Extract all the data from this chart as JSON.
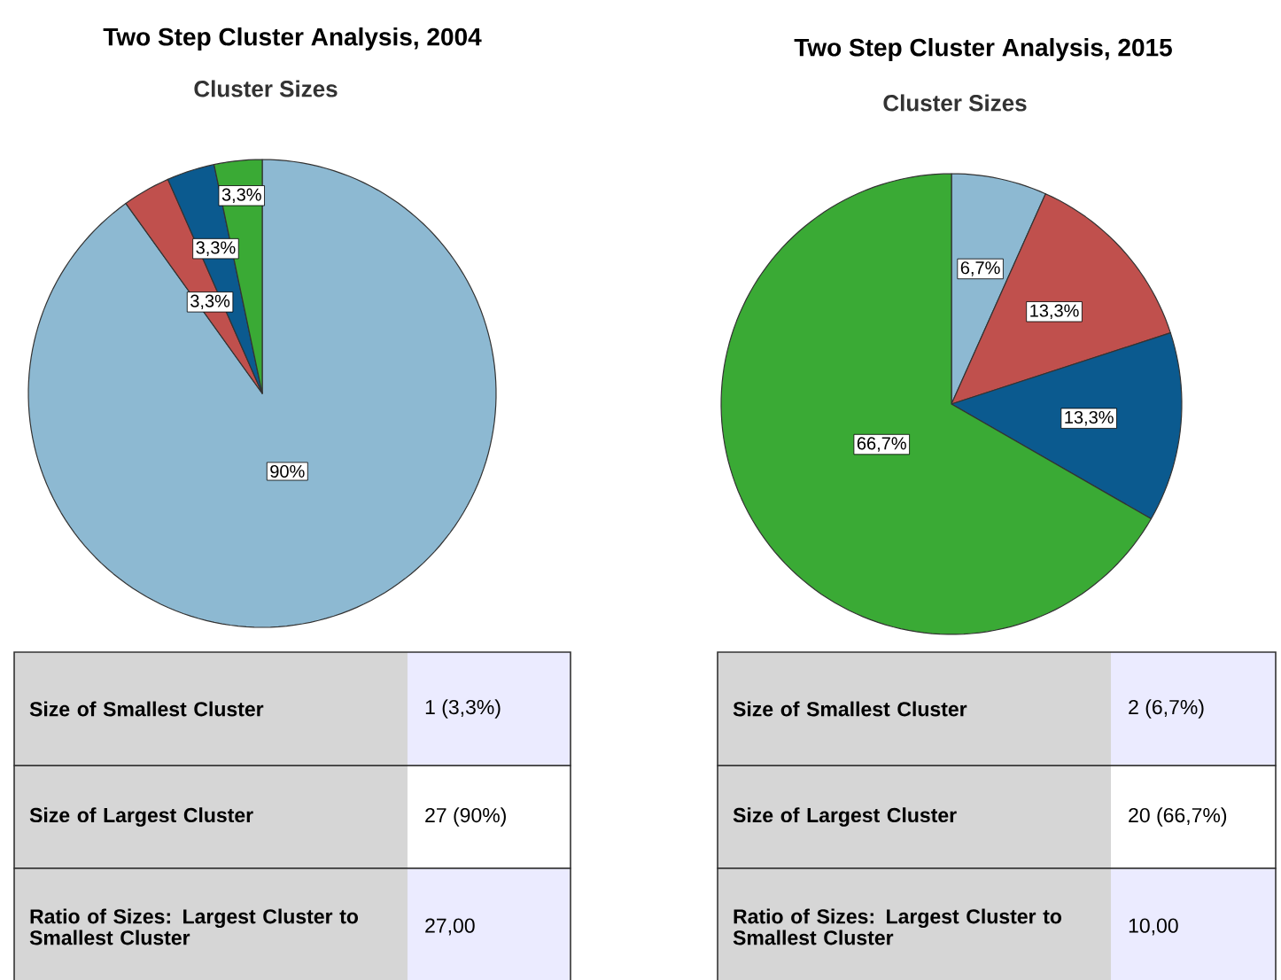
{
  "chart_data": [
    {
      "type": "pie",
      "title": "Two Step Cluster Analysis, 2004",
      "subtitle": "Cluster Sizes",
      "categories": [
        null,
        null,
        null,
        null
      ],
      "values": [
        90,
        3.3,
        3.3,
        3.3
      ],
      "colors": [
        "#8db9d2",
        "#c0504d",
        "#0b5a8f",
        "#3aaa35"
      ],
      "value_labels": [
        "90%",
        "3,3%",
        "3,3%",
        "3,3%"
      ],
      "annotations": [
        "Size of Smallest Cluster",
        "1 (3,3%)",
        "Size of Largest Cluster",
        "27 (90%)",
        "Ratio of Sizes: Largest Cluster to Smallest Cluster",
        "27,00"
      ]
    },
    {
      "type": "pie",
      "title": "Two Step Cluster Analysis, 2015",
      "subtitle": "Cluster Sizes",
      "categories": [
        null,
        null,
        null,
        null
      ],
      "values": [
        6.7,
        13.3,
        13.3,
        66.7
      ],
      "colors": [
        "#8db9d2",
        "#c0504d",
        "#0b5a8f",
        "#3aaa35"
      ],
      "value_labels": [
        "6,7%",
        "13,3%",
        "13,3%",
        "66,7%"
      ],
      "annotations": [
        "Size of Smallest Cluster",
        "2 (6,7%)",
        "Size of Largest Cluster",
        "20 (66,7%)",
        "Ratio of Sizes: Largest Cluster to Smallest Cluster",
        "10,00"
      ]
    }
  ]
}
